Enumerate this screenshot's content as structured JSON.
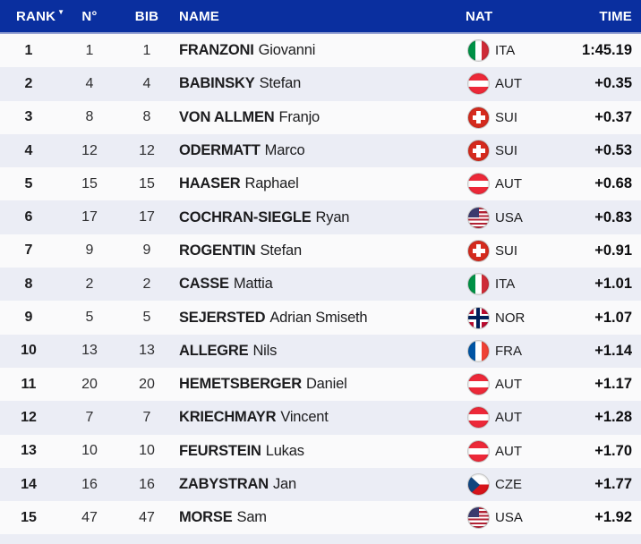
{
  "colors": {
    "header_bg": "#0a2f9f",
    "header_text": "#ffffff",
    "row_odd": "#fafafb",
    "row_even": "#ebedf5",
    "header_border": "#97a3d4",
    "text_primary": "#1c1c1e",
    "text_secondary": "#2e2e30"
  },
  "header": {
    "sort_indicator": "▼",
    "columns": {
      "rank": "RANK",
      "no": "N°",
      "bib": "BIB",
      "name": "NAME",
      "nat": "NAT",
      "time": "TIME"
    }
  },
  "rows": [
    {
      "rank": "1",
      "no": "1",
      "bib": "1",
      "last": "FRANZONI",
      "first": "Giovanni",
      "nat": "ITA",
      "flag": "ita",
      "time": "1:45.19"
    },
    {
      "rank": "2",
      "no": "4",
      "bib": "4",
      "last": "BABINSKY",
      "first": "Stefan",
      "nat": "AUT",
      "flag": "aut",
      "time": "+0.35"
    },
    {
      "rank": "3",
      "no": "8",
      "bib": "8",
      "last": "VON ALLMEN",
      "first": "Franjo",
      "nat": "SUI",
      "flag": "sui",
      "time": "+0.37"
    },
    {
      "rank": "4",
      "no": "12",
      "bib": "12",
      "last": "ODERMATT",
      "first": "Marco",
      "nat": "SUI",
      "flag": "sui",
      "time": "+0.53"
    },
    {
      "rank": "5",
      "no": "15",
      "bib": "15",
      "last": "HAASER",
      "first": "Raphael",
      "nat": "AUT",
      "flag": "aut",
      "time": "+0.68"
    },
    {
      "rank": "6",
      "no": "17",
      "bib": "17",
      "last": "COCHRAN-SIEGLE",
      "first": "Ryan",
      "nat": "USA",
      "flag": "usa",
      "time": "+0.83"
    },
    {
      "rank": "7",
      "no": "9",
      "bib": "9",
      "last": "ROGENTIN",
      "first": "Stefan",
      "nat": "SUI",
      "flag": "sui",
      "time": "+0.91"
    },
    {
      "rank": "8",
      "no": "2",
      "bib": "2",
      "last": "CASSE",
      "first": "Mattia",
      "nat": "ITA",
      "flag": "ita",
      "time": "+1.01"
    },
    {
      "rank": "9",
      "no": "5",
      "bib": "5",
      "last": "SEJERSTED",
      "first": "Adrian Smiseth",
      "nat": "NOR",
      "flag": "nor",
      "time": "+1.07"
    },
    {
      "rank": "10",
      "no": "13",
      "bib": "13",
      "last": "ALLEGRE",
      "first": "Nils",
      "nat": "FRA",
      "flag": "fra",
      "time": "+1.14"
    },
    {
      "rank": "11",
      "no": "20",
      "bib": "20",
      "last": "HEMETSBERGER",
      "first": "Daniel",
      "nat": "AUT",
      "flag": "aut",
      "time": "+1.17"
    },
    {
      "rank": "12",
      "no": "7",
      "bib": "7",
      "last": "KRIECHMAYR",
      "first": "Vincent",
      "nat": "AUT",
      "flag": "aut",
      "time": "+1.28"
    },
    {
      "rank": "13",
      "no": "10",
      "bib": "10",
      "last": "FEURSTEIN",
      "first": "Lukas",
      "nat": "AUT",
      "flag": "aut",
      "time": "+1.70"
    },
    {
      "rank": "14",
      "no": "16",
      "bib": "16",
      "last": "ZABYSTRAN",
      "first": "Jan",
      "nat": "CZE",
      "flag": "cze",
      "time": "+1.77"
    },
    {
      "rank": "15",
      "no": "47",
      "bib": "47",
      "last": "MORSE",
      "first": "Sam",
      "nat": "USA",
      "flag": "usa",
      "time": "+1.92"
    }
  ]
}
